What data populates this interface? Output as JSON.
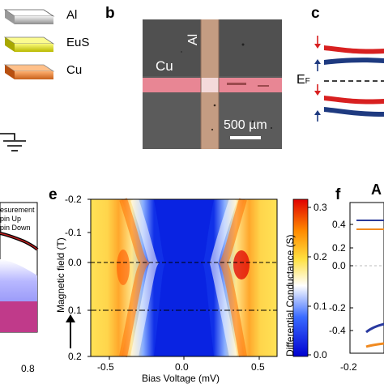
{
  "panel_a": {
    "legend": [
      {
        "label": "Al",
        "color": "#bfbfbf"
      },
      {
        "label": "EuS",
        "color": "#e8e826"
      },
      {
        "label": "Cu",
        "color": "#e8842c"
      }
    ]
  },
  "panel_b": {
    "letter": "b",
    "cu_label": "Cu",
    "al_label": "Al",
    "scale_label": "500 µm"
  },
  "panel_c": {
    "letter": "c",
    "fermi_label": "E",
    "fermi_sub": "F"
  },
  "panel_d": {
    "legend": [
      "esurement",
      "pin Up",
      "pin Down"
    ],
    "x_tick": "0.8"
  },
  "panel_e": {
    "letter": "e",
    "xlabel": "Bias Voltage (mV)",
    "ylabel": "Magnetic field (T)",
    "x_ticks": [
      "-0.5",
      "0.0",
      "0.5"
    ],
    "y_ticks": [
      "-0.2",
      "-0.1",
      "0.0",
      "0.1",
      "0.2"
    ],
    "colorbar_label": "Differential Conductance (S)",
    "colorbar_ticks": [
      "0.3",
      "0.2",
      "0.1",
      "0.0"
    ]
  },
  "panel_f": {
    "letter": "f",
    "partial_title": "A",
    "y_ticks": [
      "0.4",
      "0.2",
      "0.0",
      "-0.2",
      "-0.4"
    ],
    "x_tick": "-0.2"
  },
  "chart_data": {
    "type": "heatmap",
    "title": "",
    "xlabel": "Bias Voltage (mV)",
    "ylabel": "Magnetic field (T)",
    "xlim": [
      -0.6,
      0.6
    ],
    "ylim": [
      -0.2,
      0.2
    ],
    "y_inverted": true,
    "colorbar_label": "Differential Conductance (S)",
    "colorbar_range": [
      0.0,
      0.32
    ],
    "colormap": [
      "#0000d0",
      "#3a6bff",
      "#ffffff",
      "#ffe040",
      "#ff8a00",
      "#e00000"
    ],
    "peaks": [
      {
        "field": -0.2,
        "v_minus": -0.56,
        "v_plus": 0.5
      },
      {
        "field": 0.0,
        "v_minus": -0.33,
        "v_plus": 0.33
      },
      {
        "field": 0.01,
        "v_minus": -0.29,
        "v_plus": 0.29
      },
      {
        "field": 0.2,
        "v_minus": -0.5,
        "v_plus": 0.52
      }
    ],
    "dashed_line_field": 0.01,
    "dashdot_line_field": 0.1
  },
  "colors": {
    "cu_stripe": "#e98592",
    "al_stripe": "#c79a80",
    "substrate": "#5a5a5a",
    "red_band": "#d82020",
    "blue_band": "#1e3a80"
  }
}
